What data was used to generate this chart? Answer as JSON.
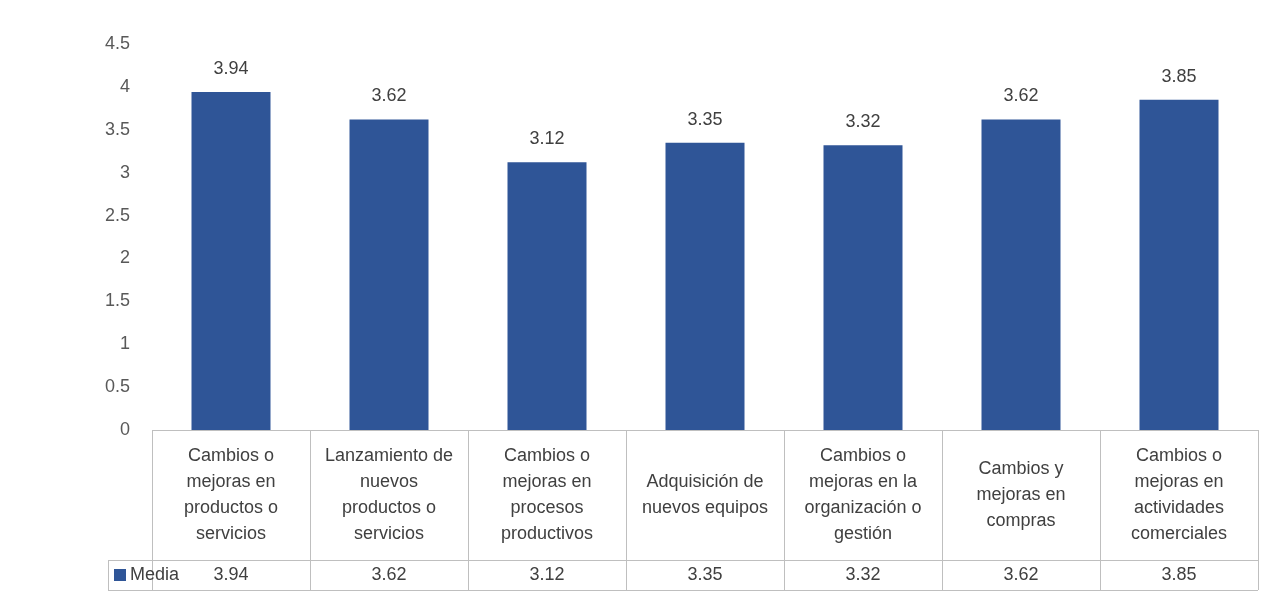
{
  "chart_data": {
    "type": "bar",
    "categories": [
      "Cambios o mejoras en productos o servicios",
      "Lanzamiento de nuevos productos o servicios",
      "Cambios o mejoras en procesos productivos",
      "Adquisición de nuevos equipos",
      "Cambios o mejoras en la organización o gestión",
      "Cambios y mejoras en compras",
      "Cambios o mejoras en actividades comerciales"
    ],
    "series": [
      {
        "name": "Media",
        "color": "#2f5597",
        "values": [
          3.94,
          3.62,
          3.12,
          3.35,
          3.32,
          3.62,
          3.85
        ],
        "value_labels": [
          "3.94",
          "3.62",
          "3.12",
          "3.35",
          "3.32",
          "3.62",
          "3.85"
        ]
      }
    ],
    "annotations": [
      "3.94",
      "3.62",
      "3.12",
      "3.35",
      "3.32",
      "3.62",
      "3.85"
    ],
    "ylim": [
      0,
      4.5
    ],
    "yticks": [
      0,
      0.5,
      1,
      1.5,
      2,
      2.5,
      3,
      3.5,
      4,
      4.5
    ],
    "grid": false,
    "legend": "bottom"
  }
}
